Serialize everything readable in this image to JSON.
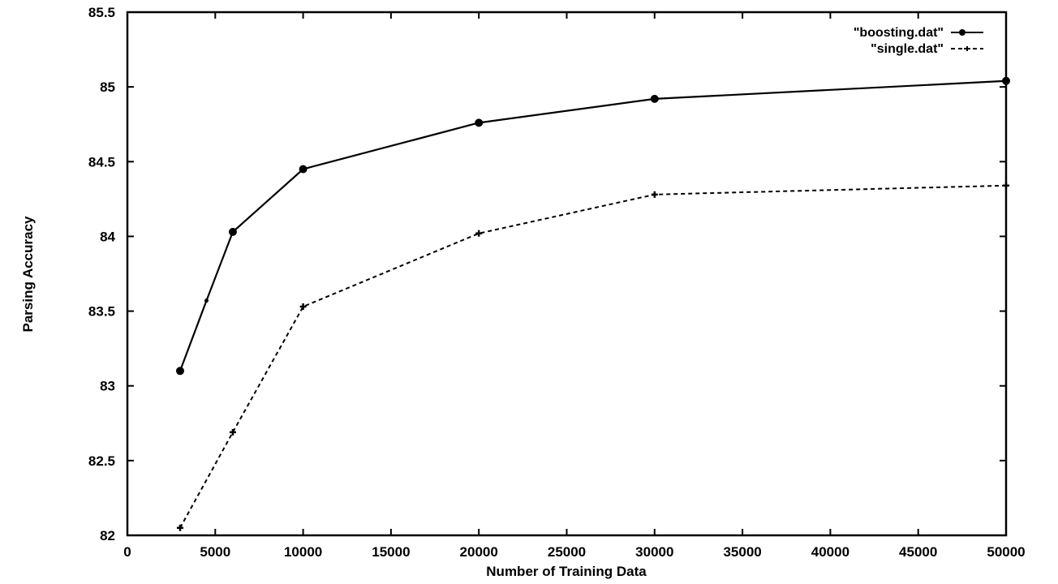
{
  "chart_data": {
    "type": "line",
    "title": "",
    "xlabel": "Number of Training Data",
    "ylabel": "Parsing Accuracy",
    "xlim": [
      0,
      50000
    ],
    "ylim": [
      82,
      85.5
    ],
    "xticks": [
      0,
      5000,
      10000,
      15000,
      20000,
      25000,
      30000,
      35000,
      40000,
      45000,
      50000
    ],
    "yticks": [
      82,
      82.5,
      83,
      83.5,
      84,
      84.5,
      85,
      85.5
    ],
    "xtick_labels": [
      "0",
      "5000",
      "10000",
      "15000",
      "20000",
      "25000",
      "30000",
      "35000",
      "40000",
      "45000",
      "50000"
    ],
    "ytick_labels": [
      "82",
      "82.5",
      "83",
      "83.5",
      "84",
      "84.5",
      "85",
      "85.5"
    ],
    "grid": false,
    "legend_position": "top-right",
    "series": [
      {
        "name": "\"boosting.dat\"",
        "style": "solid",
        "x": [
          3000,
          4500,
          6000,
          10000,
          20000,
          30000,
          50000
        ],
        "y": [
          83.1,
          83.57,
          84.03,
          84.45,
          84.76,
          84.92,
          85.04
        ]
      },
      {
        "name": "\"single.dat\"",
        "style": "dashed",
        "x": [
          3000,
          6000,
          10000,
          20000,
          30000,
          50000
        ],
        "y": [
          82.05,
          82.69,
          83.53,
          84.02,
          84.28,
          84.34
        ]
      }
    ]
  }
}
